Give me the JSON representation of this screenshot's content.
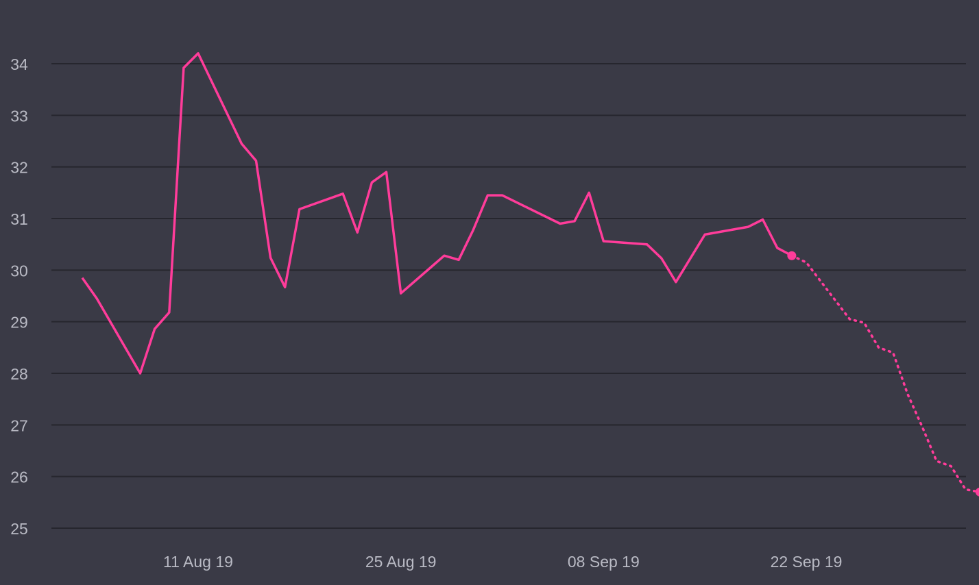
{
  "chart_data": {
    "type": "line",
    "background": "#3a3a46",
    "grid_color": "#26262e",
    "series_color": "#ff3c9a",
    "grid": true,
    "y_ticks": [
      "25",
      "26",
      "27",
      "28",
      "29",
      "30",
      "31",
      "32",
      "33",
      "34"
    ],
    "ylim": [
      25,
      34
    ],
    "x_ticks": [
      {
        "date": "2019-08-11",
        "label": "11 Aug 19"
      },
      {
        "date": "2019-08-25",
        "label": "25 Aug 19"
      },
      {
        "date": "2019-09-08",
        "label": "08 Sep 19"
      },
      {
        "date": "2019-09-22",
        "label": "22 Sep 19"
      }
    ],
    "xlim": [
      "2019-08-03",
      "2019-10-01"
    ],
    "series": [
      {
        "style": "solid",
        "end_marker": true,
        "points": [
          {
            "x": "2019-08-03",
            "y": 29.85
          },
          {
            "x": "2019-08-04",
            "y": 29.45
          },
          {
            "x": "2019-08-07",
            "y": 28.0
          },
          {
            "x": "2019-08-08",
            "y": 28.86
          },
          {
            "x": "2019-08-09",
            "y": 29.18
          },
          {
            "x": "2019-08-10",
            "y": 33.92
          },
          {
            "x": "2019-08-11",
            "y": 34.2
          },
          {
            "x": "2019-08-14",
            "y": 32.45
          },
          {
            "x": "2019-08-15",
            "y": 32.12
          },
          {
            "x": "2019-08-16",
            "y": 30.24
          },
          {
            "x": "2019-08-17",
            "y": 29.67
          },
          {
            "x": "2019-08-18",
            "y": 31.18
          },
          {
            "x": "2019-08-21",
            "y": 31.48
          },
          {
            "x": "2019-08-22",
            "y": 30.73
          },
          {
            "x": "2019-08-23",
            "y": 31.7
          },
          {
            "x": "2019-08-24",
            "y": 31.9
          },
          {
            "x": "2019-08-25",
            "y": 29.55
          },
          {
            "x": "2019-08-28",
            "y": 30.28
          },
          {
            "x": "2019-08-29",
            "y": 30.2
          },
          {
            "x": "2019-08-30",
            "y": 30.78
          },
          {
            "x": "2019-08-31",
            "y": 31.45
          },
          {
            "x": "2019-09-01",
            "y": 31.45
          },
          {
            "x": "2019-09-05",
            "y": 30.9
          },
          {
            "x": "2019-09-06",
            "y": 30.95
          },
          {
            "x": "2019-09-07",
            "y": 31.5
          },
          {
            "x": "2019-09-08",
            "y": 30.56
          },
          {
            "x": "2019-09-11",
            "y": 30.5
          },
          {
            "x": "2019-09-12",
            "y": 30.23
          },
          {
            "x": "2019-09-13",
            "y": 29.77
          },
          {
            "x": "2019-09-15",
            "y": 30.69
          },
          {
            "x": "2019-09-18",
            "y": 30.84
          },
          {
            "x": "2019-09-19",
            "y": 30.98
          },
          {
            "x": "2019-09-20",
            "y": 30.43
          },
          {
            "x": "2019-09-21",
            "y": 30.28
          }
        ]
      },
      {
        "style": "dotted",
        "end_marker": true,
        "points": [
          {
            "x": "2019-09-21",
            "y": 30.28
          },
          {
            "x": "2019-09-22",
            "y": 30.15
          },
          {
            "x": "2019-09-25",
            "y": 29.05
          },
          {
            "x": "2019-09-26",
            "y": 28.98
          },
          {
            "x": "2019-09-27",
            "y": 28.5
          },
          {
            "x": "2019-09-28",
            "y": 28.4
          },
          {
            "x": "2019-09-29",
            "y": 27.6
          },
          {
            "x": "2019-09-30",
            "y": 26.97
          },
          {
            "x": "2019-10-01",
            "y": 26.3
          },
          {
            "x": "2019-10-02",
            "y": 26.2
          },
          {
            "x": "2019-10-03",
            "y": 25.75
          },
          {
            "x": "2019-10-04",
            "y": 25.7
          }
        ]
      }
    ]
  }
}
